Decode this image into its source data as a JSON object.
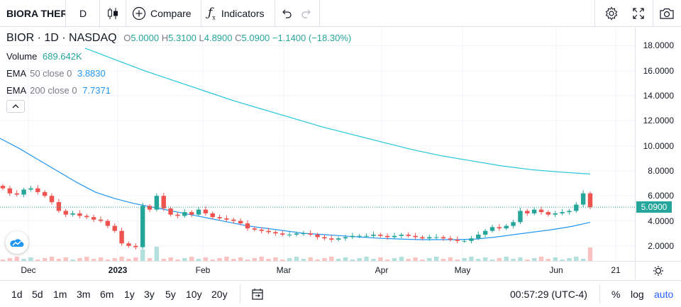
{
  "toolbar": {
    "symbol": "BIORA THER",
    "interval": "D",
    "compare_label": "Compare",
    "indicators_label": "Indicators"
  },
  "legend": {
    "title": "BIOR · 1D · NASDAQ",
    "ohlc": {
      "o_label": "O",
      "o": "5.0000",
      "h_label": "H",
      "h": "5.3100",
      "l_label": "L",
      "l": "4.8900",
      "c_label": "C",
      "c": "5.0900",
      "change": "−1.1400 (−18.30%)"
    },
    "volume": {
      "label": "Volume",
      "value": "689.642K"
    },
    "ema50": {
      "label": "EMA",
      "params": "50 close 0",
      "value": "3.8830"
    },
    "ema200": {
      "label": "EMA",
      "params": "200 close 0",
      "value": "7.7371"
    }
  },
  "price_axis": {
    "labels": [
      "18.0000",
      "16.0000",
      "14.0000",
      "12.0000",
      "10.0000",
      "8.0000",
      "6.0000",
      "4.0000",
      "2.0000"
    ],
    "current": "5.0900"
  },
  "time_axis": {
    "labels": [
      "Dec",
      "2023",
      "Feb",
      "Mar",
      "Apr",
      "May",
      "Jun",
      "21"
    ]
  },
  "bottom": {
    "ranges": [
      "1d",
      "5d",
      "1m",
      "3m",
      "6m",
      "1y",
      "3y",
      "5y",
      "10y",
      "20y"
    ],
    "clock": "00:57:29 (UTC-4)",
    "percent": "%",
    "log": "log",
    "auto": "auto"
  },
  "colors": {
    "up": "#26a69a",
    "down": "#ef5350",
    "ema50": "#2196f3",
    "ema200": "#26c6da"
  },
  "chart_data": {
    "type": "candlestick",
    "ylim": [
      0.8,
      19.5
    ],
    "y_ticks": [
      18,
      16,
      14,
      12,
      10,
      8,
      6,
      4,
      2
    ],
    "x_labels": [
      "Dec",
      "2023",
      "Feb",
      "Mar",
      "Apr",
      "May",
      "Jun",
      "21"
    ],
    "last_close": 5.09,
    "ema200_series": [
      17.8,
      16.9,
      16.0,
      15.2,
      14.4,
      13.6,
      12.9,
      12.2,
      11.5,
      10.9,
      10.3,
      9.7,
      9.2,
      8.8,
      8.4,
      8.1,
      7.9,
      7.74
    ],
    "ema50_series": [
      10.6,
      9.8,
      8.9,
      8.0,
      7.1,
      6.3,
      5.8,
      5.4,
      5.1,
      4.8,
      4.5,
      4.2,
      3.9,
      3.6,
      3.4,
      3.2,
      3.0,
      2.9,
      2.8,
      2.7,
      2.6,
      2.55,
      2.5,
      2.5,
      2.5,
      2.55,
      2.7,
      2.9,
      3.1,
      3.3,
      3.55,
      3.88
    ],
    "closes": [
      6.6,
      6.2,
      6.1,
      6.5,
      6.6,
      6.3,
      6.0,
      5.5,
      4.8,
      4.5,
      4.6,
      4.4,
      4.3,
      4.1,
      4.0,
      3.6,
      3.2,
      2.2,
      2.0,
      1.9,
      5.2,
      4.9,
      6.0,
      5.0,
      4.5,
      4.4,
      4.7,
      4.5,
      4.9,
      4.6,
      4.3,
      4.2,
      4.1,
      4.0,
      3.8,
      3.4,
      3.3,
      3.2,
      3.1,
      3.0,
      2.9,
      2.9,
      3.0,
      3.0,
      2.9,
      2.7,
      2.6,
      2.5,
      2.6,
      2.7,
      2.8,
      2.8,
      2.8,
      2.9,
      2.8,
      2.7,
      2.8,
      2.9,
      2.8,
      2.7,
      2.6,
      2.7,
      2.7,
      2.6,
      2.5,
      2.4,
      2.4,
      2.6,
      2.9,
      3.2,
      3.5,
      3.4,
      3.6,
      3.9,
      4.8,
      4.6,
      4.9,
      4.7,
      4.5,
      4.6,
      4.7,
      4.8,
      5.3,
      6.2,
      5.09
    ]
  }
}
